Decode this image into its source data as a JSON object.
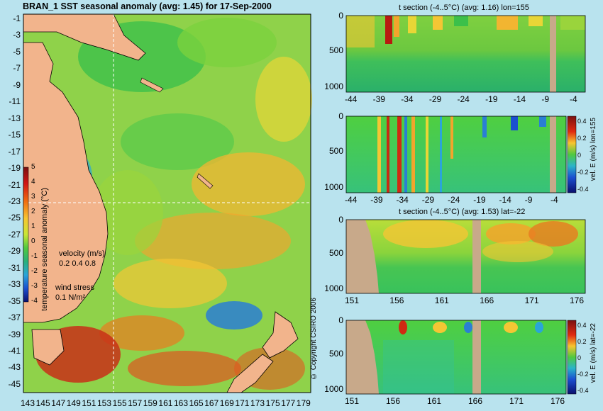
{
  "main": {
    "title": "BRAN_1  SST seasonal anomaly (avg: 1.45) for 17-Sep-2000",
    "ylabels": [
      "-1",
      "-3",
      "-5",
      "-7",
      "-9",
      "-11",
      "-13",
      "-15",
      "-17",
      "-19",
      "-21",
      "-23",
      "-25",
      "-27",
      "-29",
      "-31",
      "-33",
      "-35",
      "-37",
      "-39",
      "-41",
      "-43",
      "-45"
    ],
    "xlabels": [
      "143",
      "145",
      "147",
      "149",
      "151",
      "153",
      "155",
      "157",
      "159",
      "161",
      "163",
      "165",
      "167",
      "169",
      "171",
      "173",
      "175",
      "177",
      "179"
    ],
    "colorbar": {
      "ticks": [
        "5",
        "4",
        "3",
        "2",
        "1",
        "0",
        "-1",
        "-2",
        "-3",
        "-4"
      ],
      "label": "temperature seasonal anomaly (°C)"
    },
    "legend": {
      "velocity_label": "velocity (m/s)",
      "velocity_scale": "0.2 0.4 0.8",
      "wind_label": "wind stress",
      "wind_scale": "0.1 N/m²"
    },
    "copyright": "© Copyright CSIRO 2006"
  },
  "panels": {
    "p1": {
      "title": "t section (-4..5°C) (avg: 1.16) lon=155",
      "yticks": [
        "0",
        "500",
        "1000"
      ],
      "xticks": [
        "-44",
        "-39",
        "-34",
        "-29",
        "-24",
        "-19",
        "-14",
        "-9",
        "-4"
      ]
    },
    "p2": {
      "yticks": [
        "0",
        "500",
        "1000"
      ],
      "xticks": [
        "-44",
        "-39",
        "-34",
        "-29",
        "-24",
        "-19",
        "-14",
        "-9",
        "-4"
      ],
      "cbar_ticks": [
        "0.4",
        "0.2",
        "0",
        "-0.2",
        "-0.4"
      ],
      "cbar_label": "vel. E (m/s) lon=155"
    },
    "p3": {
      "title": "t section (-4..5°C) (avg: 1.53) lat=-22",
      "yticks": [
        "0",
        "500",
        "1000"
      ],
      "xticks": [
        "151",
        "156",
        "161",
        "166",
        "171",
        "176"
      ]
    },
    "p4": {
      "yticks": [
        "0",
        "500",
        "1000"
      ],
      "xticks": [
        "151",
        "156",
        "161",
        "166",
        "171",
        "176"
      ],
      "cbar_ticks": [
        "0.4",
        "0.2",
        "0",
        "-0.2",
        "-0.4"
      ],
      "cbar_label": "vel. E (m/s) lat=-22"
    }
  },
  "chart_data": [
    {
      "type": "heatmap",
      "title": "BRAN_1  SST seasonal anomaly (avg: 1.45) for 17-Sep-2000",
      "xlabel": "",
      "ylabel": "",
      "xlim": [
        143,
        180
      ],
      "ylim": [
        -45,
        0
      ],
      "colorbar_range": [
        -4,
        5
      ],
      "colorbar_label": "temperature seasonal anomaly (°C)",
      "avg": 1.45
    },
    {
      "type": "heatmap",
      "title": "t section (-4..5°C) (avg: 1.16) lon=155",
      "xlim": [
        -45,
        0
      ],
      "ylim": [
        1050,
        0
      ],
      "colorbar_range": [
        -4,
        5
      ],
      "avg": 1.16
    },
    {
      "type": "heatmap",
      "title": "",
      "xlim": [
        -45,
        0
      ],
      "ylim": [
        1050,
        0
      ],
      "colorbar_range": [
        -0.4,
        0.4
      ],
      "colorbar_label": "vel. E (m/s) lon=155"
    },
    {
      "type": "heatmap",
      "title": "t section (-4..5°C) (avg: 1.53) lat=-22",
      "xlim": [
        150,
        180
      ],
      "ylim": [
        1050,
        0
      ],
      "colorbar_range": [
        -4,
        5
      ],
      "avg": 1.53
    },
    {
      "type": "heatmap",
      "title": "",
      "xlim": [
        150,
        180
      ],
      "ylim": [
        1050,
        0
      ],
      "colorbar_range": [
        -0.4,
        0.4
      ],
      "colorbar_label": "vel. E (m/s) lat=-22"
    }
  ]
}
